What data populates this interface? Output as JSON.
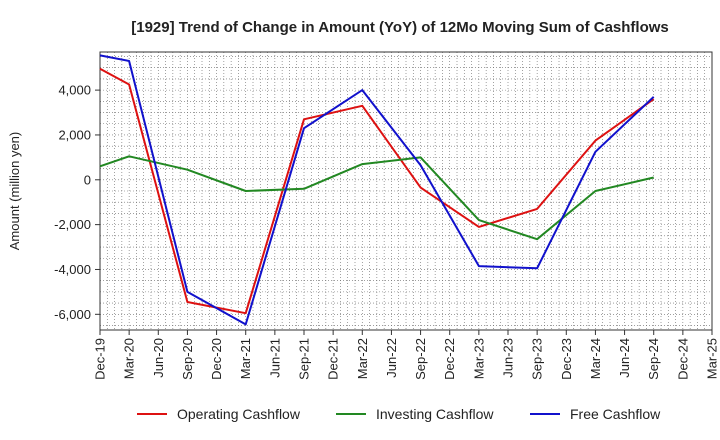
{
  "chart_data": {
    "type": "line",
    "title": "[1929]  Trend of Change in Amount (YoY) of 12Mo Moving Sum of Cashflows",
    "xlabel": "",
    "ylabel": "Amount (million yen)",
    "categories": [
      "Dec-19",
      "Mar-20",
      "Jun-20",
      "Sep-20",
      "Dec-20",
      "Mar-21",
      "Jun-21",
      "Sep-21",
      "Dec-21",
      "Mar-22",
      "Jun-22",
      "Sep-22",
      "Dec-22",
      "Mar-23",
      "Jun-23",
      "Sep-23",
      "Dec-23",
      "Mar-24",
      "Jun-24",
      "Sep-24",
      "Dec-24",
      "Mar-25"
    ],
    "ylim": [
      -6700,
      5700
    ],
    "yticks": [
      -6000,
      -4000,
      -2000,
      0,
      2000,
      4000
    ],
    "ytick_labels": [
      "-6,000",
      "-4,000",
      "-2,000",
      "0",
      "2,000",
      "4,000"
    ],
    "grid": true,
    "legend_position": "bottom",
    "series": [
      {
        "name": "Operating Cashflow",
        "color": "#dd1111",
        "values": [
          4950,
          4250,
          null,
          -5450,
          null,
          -5950,
          null,
          2700,
          null,
          3300,
          null,
          -350,
          null,
          -2100,
          null,
          -1300,
          null,
          1750,
          null,
          3600,
          null,
          null
        ]
      },
      {
        "name": "Investing Cashflow",
        "color": "#228822",
        "values": [
          600,
          1050,
          null,
          450,
          null,
          -500,
          null,
          -400,
          null,
          700,
          null,
          1000,
          null,
          -1800,
          null,
          -2650,
          null,
          -500,
          null,
          100,
          null,
          null
        ]
      },
      {
        "name": "Free Cashflow",
        "color": "#1111cc",
        "values": [
          5550,
          5300,
          null,
          -5000,
          null,
          -6450,
          null,
          2300,
          null,
          4000,
          null,
          650,
          null,
          -3850,
          null,
          -3950,
          null,
          1250,
          null,
          3700,
          null,
          null
        ]
      }
    ]
  }
}
